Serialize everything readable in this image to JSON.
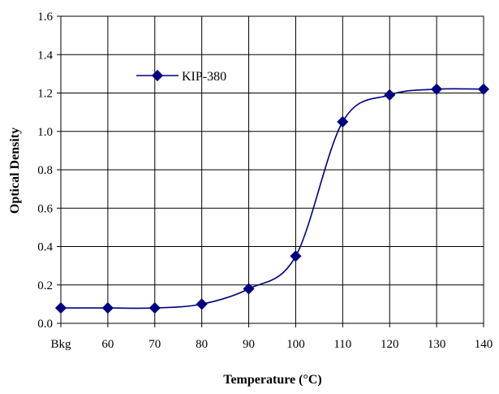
{
  "chart_data": {
    "type": "line",
    "title": "",
    "xlabel": "Temperature (°C)",
    "ylabel": "Optical Density",
    "categories": [
      "Bkg",
      "60",
      "70",
      "80",
      "90",
      "100",
      "110",
      "120",
      "130",
      "140"
    ],
    "series": [
      {
        "name": "KIP-380",
        "values": [
          0.08,
          0.08,
          0.08,
          0.1,
          0.18,
          0.35,
          1.05,
          1.19,
          1.22,
          1.22
        ],
        "color": "#000080",
        "marker": "diamond",
        "smooth": true
      }
    ],
    "ylim": [
      0,
      1.6
    ],
    "yticks": [
      "0.0",
      "0.2",
      "0.4",
      "0.6",
      "0.8",
      "1.0",
      "1.2",
      "1.4",
      "1.6"
    ],
    "grid": true,
    "legend": "top-left"
  }
}
